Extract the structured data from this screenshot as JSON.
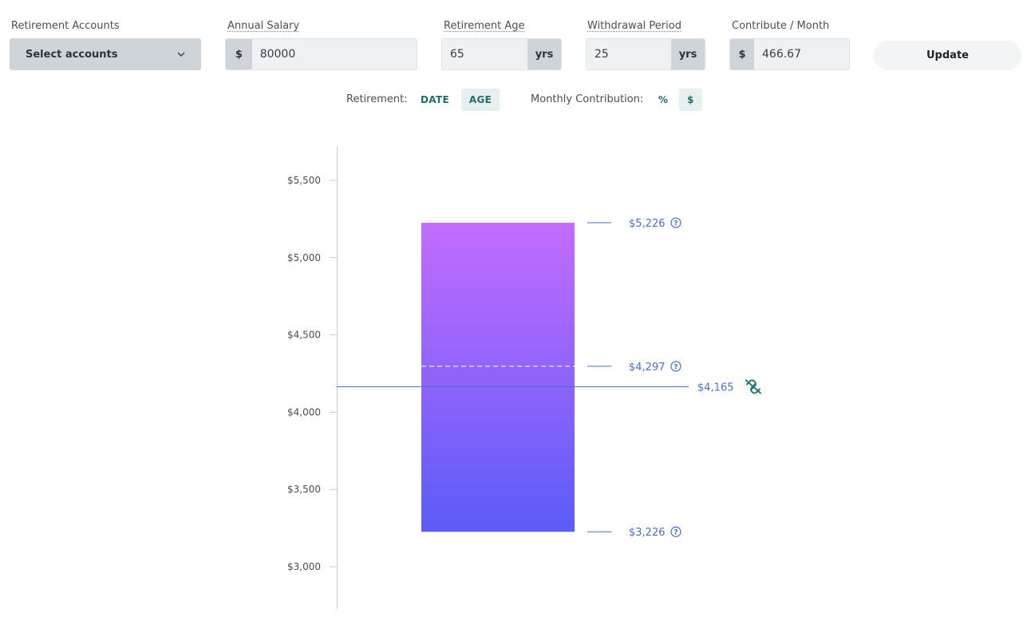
{
  "controls": {
    "accounts": {
      "label": "Retirement Accounts",
      "value": "Select accounts"
    },
    "salary": {
      "label": "Annual Salary",
      "prefix": "$",
      "value": "80000"
    },
    "age": {
      "label": "Retirement Age",
      "value": "65",
      "suffix": "yrs"
    },
    "withdrawal": {
      "label": "Withdrawal Period",
      "value": "25",
      "suffix": "yrs"
    },
    "contribute": {
      "label": "Contribute / Month",
      "prefix": "$",
      "value": "466.67"
    },
    "update_label": "Update"
  },
  "toggles": {
    "retirement_label": "Retirement:",
    "retirement_options": [
      "DATE",
      "AGE"
    ],
    "retirement_selected": "AGE",
    "contribution_label": "Monthly Contribution:",
    "contribution_options": [
      "%",
      "$"
    ],
    "contribution_selected": "$"
  },
  "chart_data": {
    "type": "bar",
    "y_ticks": [
      "$3,000",
      "$3,500",
      "$4,000",
      "$4,500",
      "$5,000",
      "$5,500"
    ],
    "y_tick_values": [
      3000,
      3500,
      4000,
      4500,
      5000,
      5500
    ],
    "range": {
      "low": 3226,
      "median": 4297,
      "high": 5226
    },
    "labels": {
      "high": "$5,226",
      "median": "$4,297",
      "low": "$3,226",
      "target": "$4,165"
    },
    "target": 4165,
    "colors": {
      "bar_top": "#c36cff",
      "bar_bottom": "#5b5cf7",
      "marker": "#4a6fd0",
      "link_icon": "#1f7a78"
    }
  }
}
